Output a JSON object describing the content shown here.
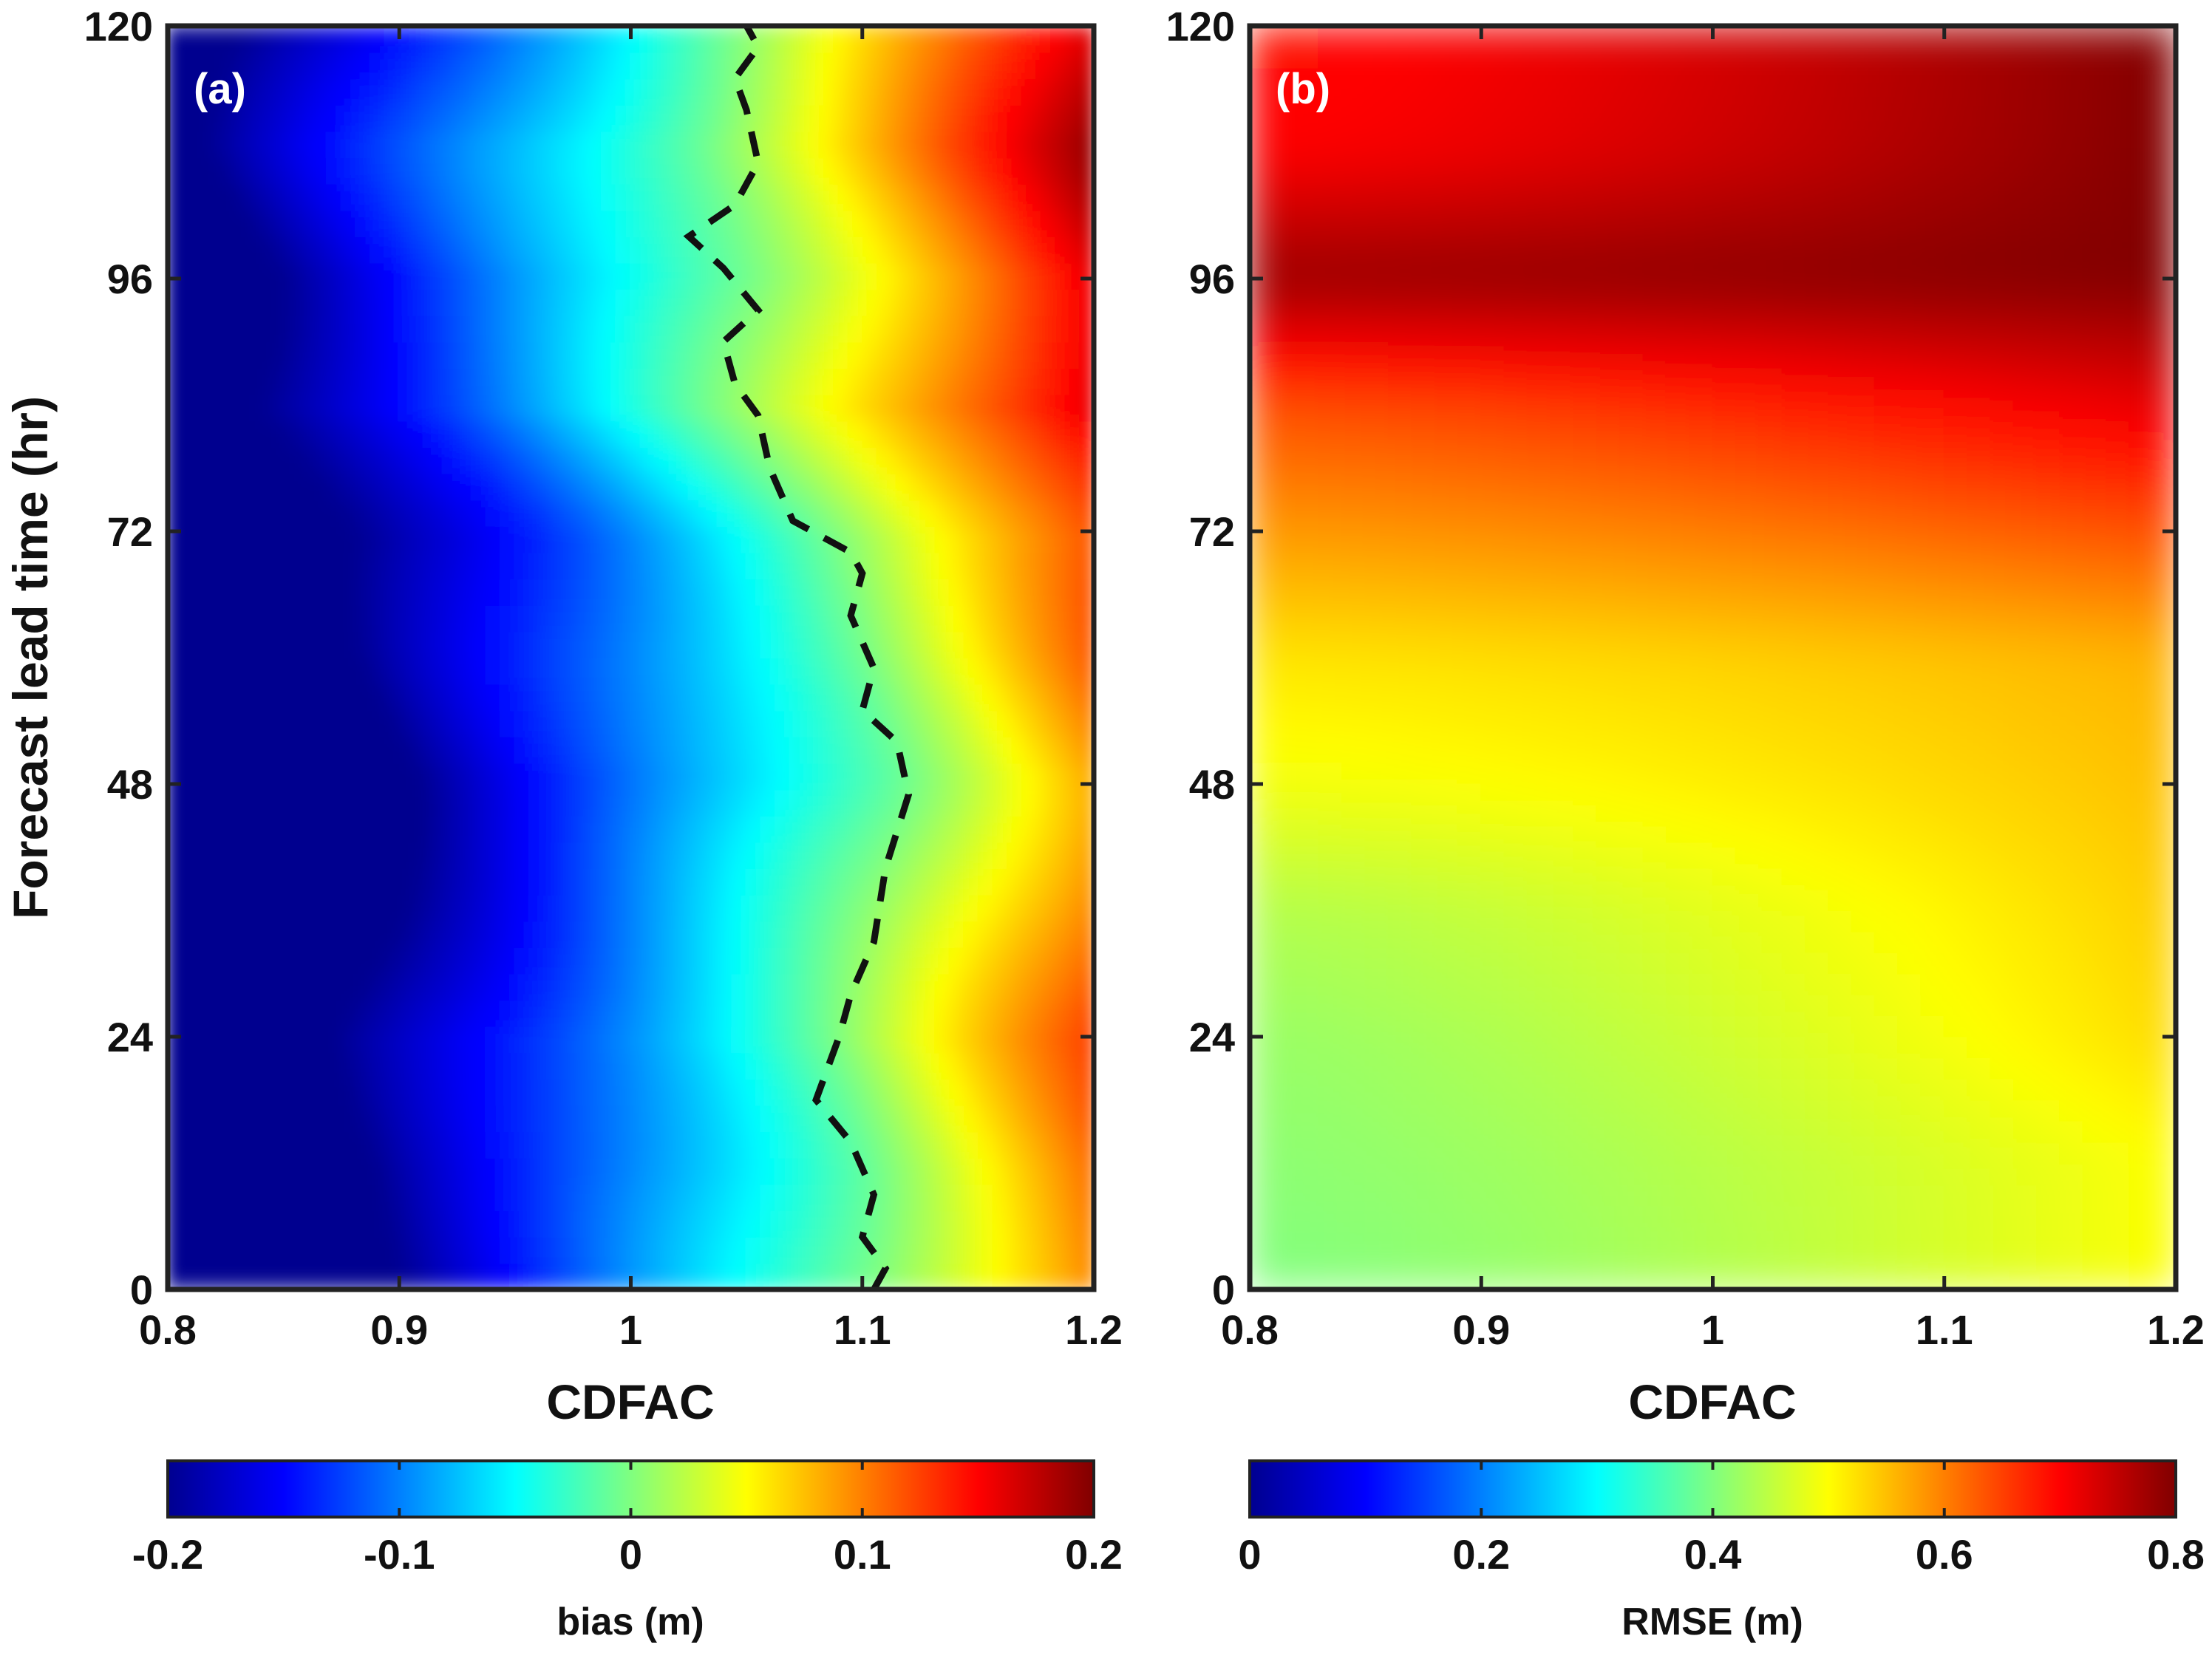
{
  "chart_data": [
    {
      "type": "heatmap",
      "panel_label": "(a)",
      "xlabel": "CDFAC",
      "ylabel": "Forecast lead time (hr)",
      "xlim": [
        0.8,
        1.2
      ],
      "ylim": [
        0,
        120
      ],
      "xticks": [
        0.8,
        0.9,
        1.0,
        1.1,
        1.2
      ],
      "xtick_labels": [
        "0.8",
        "0.9",
        "1",
        "1.1",
        "1.2"
      ],
      "yticks": [
        0,
        24,
        48,
        72,
        96,
        120
      ],
      "ytick_labels": [
        "0",
        "24",
        "48",
        "72",
        "96",
        "120"
      ],
      "colormap": "jet",
      "colorbar": {
        "label": "bias (m)",
        "range": [
          -0.2,
          0.2
        ],
        "ticks": [
          -0.2,
          -0.1,
          0,
          0.1,
          0.2
        ],
        "tick_labels": [
          "-0.2",
          "-0.1",
          "0",
          "0.1",
          "0.2"
        ]
      },
      "description_rows": {
        "lead_time": [
          0,
          12,
          24,
          36,
          48,
          60,
          72,
          84,
          96,
          108,
          120
        ],
        "zero_contour_cdfac": [
          1.105,
          1.105,
          1.09,
          1.105,
          1.12,
          1.1,
          1.095,
          1.045,
          1.055,
          1.03,
          1.05
        ]
      },
      "zero_bias_contour": {
        "style": "dashed",
        "color": "#111111",
        "points": [
          [
            1.105,
            0
          ],
          [
            1.11,
            2
          ],
          [
            1.1,
            5
          ],
          [
            1.105,
            9
          ],
          [
            1.095,
            14
          ],
          [
            1.08,
            18
          ],
          [
            1.09,
            24
          ],
          [
            1.095,
            28
          ],
          [
            1.105,
            33
          ],
          [
            1.11,
            40
          ],
          [
            1.12,
            47
          ],
          [
            1.115,
            52
          ],
          [
            1.1,
            55
          ],
          [
            1.105,
            59
          ],
          [
            1.095,
            64
          ],
          [
            1.1,
            68
          ],
          [
            1.095,
            70
          ],
          [
            1.07,
            73
          ],
          [
            1.06,
            78
          ],
          [
            1.055,
            83
          ],
          [
            1.045,
            86
          ],
          [
            1.04,
            90
          ],
          [
            1.055,
            93
          ],
          [
            1.04,
            97
          ],
          [
            1.025,
            100
          ],
          [
            1.045,
            103
          ],
          [
            1.055,
            107
          ],
          [
            1.05,
            112
          ],
          [
            1.045,
            115
          ],
          [
            1.055,
            118
          ],
          [
            1.05,
            120
          ]
        ]
      }
    },
    {
      "type": "heatmap",
      "panel_label": "(b)",
      "xlabel": "CDFAC",
      "ylabel": "",
      "xlim": [
        0.8,
        1.2
      ],
      "ylim": [
        0,
        120
      ],
      "xticks": [
        0.8,
        0.9,
        1.0,
        1.1,
        1.2
      ],
      "xtick_labels": [
        "0.8",
        "0.9",
        "1",
        "1.1",
        "1.2"
      ],
      "yticks": [
        0,
        24,
        48,
        72,
        96,
        120
      ],
      "ytick_labels": [
        "0",
        "24",
        "48",
        "72",
        "96",
        "120"
      ],
      "colormap": "jet",
      "colorbar": {
        "label": "RMSE (m)",
        "range": [
          0,
          0.8
        ],
        "ticks": [
          0,
          0.2,
          0.4,
          0.6,
          0.8
        ],
        "tick_labels": [
          "0",
          "0.2",
          "0.4",
          "0.6",
          "0.8"
        ]
      },
      "rmse_by_lead_time": {
        "lead_time": [
          0,
          12,
          24,
          36,
          48,
          60,
          72,
          84,
          96,
          108,
          120
        ],
        "rmse_at_cdfac_0_8": [
          0.4,
          0.41,
          0.42,
          0.44,
          0.49,
          0.52,
          0.58,
          0.64,
          0.78,
          0.7,
          0.69
        ],
        "rmse_at_cdfac_1_2": [
          0.5,
          0.5,
          0.53,
          0.54,
          0.55,
          0.56,
          0.64,
          0.72,
          0.8,
          0.8,
          0.8
        ]
      }
    }
  ]
}
